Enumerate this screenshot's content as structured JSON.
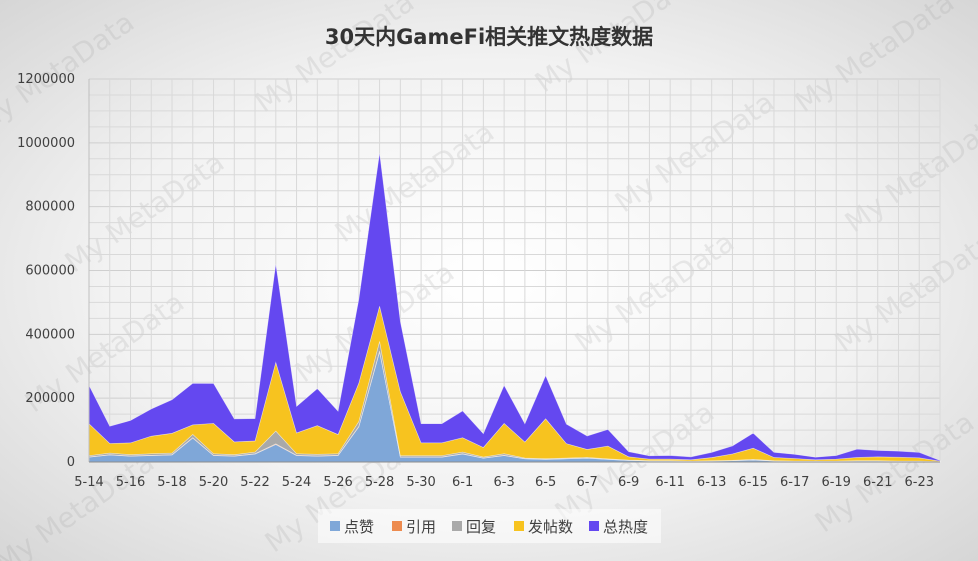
{
  "chart_data": {
    "type": "area",
    "title": "30天内GameFi相关推文热度数据",
    "xlabel": "",
    "ylabel": "",
    "ylim": [
      0,
      1200000
    ],
    "yticks": [
      "0",
      "200000",
      "400000",
      "600000",
      "800000",
      "1000000",
      "1200000"
    ],
    "grid": true,
    "legend_position": "bottom",
    "stacked": true,
    "x": [
      "5-14",
      "5-15",
      "5-16",
      "5-17",
      "5-18",
      "5-19",
      "5-20",
      "5-21",
      "5-22",
      "5-23",
      "5-24",
      "5-25",
      "5-26",
      "5-27",
      "5-28",
      "5-29",
      "5-30",
      "5-31",
      "6-1",
      "6-2",
      "6-3",
      "6-4",
      "6-5",
      "6-6",
      "6-7",
      "6-8",
      "6-9",
      "6-10",
      "6-11",
      "6-12",
      "6-13",
      "6-14",
      "6-15",
      "6-16",
      "6-17",
      "6-18",
      "6-19",
      "6-20",
      "6-21",
      "6-22",
      "6-23",
      "6-24"
    ],
    "x_tick_labels": [
      "5-14",
      "5-16",
      "5-18",
      "5-20",
      "5-22",
      "5-24",
      "5-26",
      "5-28",
      "5-30",
      "6-1",
      "6-3",
      "6-5",
      "6-7",
      "6-9",
      "6-11",
      "6-13",
      "6-15",
      "6-17",
      "6-19",
      "6-21",
      "6-23"
    ],
    "series": [
      {
        "name": "点赞",
        "color": "#7fa7d8",
        "values": [
          15000,
          22000,
          18000,
          20000,
          22000,
          75000,
          20000,
          18000,
          25000,
          55000,
          20000,
          18000,
          20000,
          110000,
          345000,
          15000,
          15000,
          15000,
          25000,
          12000,
          20000,
          10000,
          8000,
          10000,
          12000,
          8000,
          5000,
          3000,
          3000,
          2000,
          3000,
          4000,
          6000,
          3000,
          2000,
          2000,
          2000,
          3000,
          3000,
          2000,
          2000,
          1000
        ]
      },
      {
        "name": "引用",
        "color": "#ed8b4f",
        "values": [
          1000,
          1000,
          1000,
          1000,
          1000,
          1500,
          1000,
          1000,
          1000,
          2000,
          1000,
          1000,
          1000,
          2000,
          3000,
          1000,
          1000,
          1000,
          1000,
          500,
          1000,
          500,
          500,
          500,
          500,
          400,
          300,
          200,
          200,
          200,
          200,
          200,
          300,
          200,
          200,
          200,
          200,
          200,
          200,
          200,
          200,
          100
        ]
      },
      {
        "name": "回复",
        "color": "#a9a9a9",
        "values": [
          4000,
          5000,
          4000,
          5000,
          5000,
          10000,
          5000,
          4000,
          5000,
          40000,
          5000,
          5000,
          5000,
          15000,
          30000,
          4000,
          4000,
          4000,
          5000,
          3000,
          5000,
          2000,
          2000,
          2000,
          2000,
          1500,
          1000,
          1000,
          1000,
          800,
          800,
          1000,
          2000,
          1000,
          800,
          800,
          800,
          1000,
          1000,
          800,
          800,
          500
        ]
      },
      {
        "name": "发帖数",
        "color": "#f7c31f",
        "values": [
          100000,
          30000,
          37000,
          55000,
          62000,
          30000,
          95000,
          40000,
          35000,
          215000,
          65000,
          90000,
          60000,
          120000,
          110000,
          200000,
          40000,
          40000,
          45000,
          30000,
          95000,
          50000,
          125000,
          45000,
          25000,
          40000,
          10000,
          5000,
          5000,
          4000,
          10000,
          20000,
          35000,
          10000,
          8000,
          4000,
          6000,
          10000,
          12000,
          12000,
          10000,
          1000
        ]
      },
      {
        "name": "总热度",
        "color": "#6448f0",
        "values": [
          120000,
          54000,
          70000,
          85000,
          105000,
          130000,
          125000,
          72000,
          70000,
          308000,
          83000,
          116000,
          73000,
          263000,
          480000,
          220000,
          60000,
          60000,
          84000,
          43000,
          119000,
          57000,
          135000,
          61000,
          42000,
          52000,
          16000,
          10000,
          11000,
          9000,
          16000,
          25000,
          47000,
          16000,
          13000,
          8000,
          11000,
          26000,
          20000,
          19000,
          17000,
          2000
        ]
      }
    ]
  },
  "legend": [
    {
      "label": "点赞",
      "color": "#7fa7d8"
    },
    {
      "label": "引用",
      "color": "#ed8b4f"
    },
    {
      "label": "回复",
      "color": "#a9a9a9"
    },
    {
      "label": "发帖数",
      "color": "#f7c31f"
    },
    {
      "label": "总热度",
      "color": "#6448f0"
    }
  ],
  "watermark": "My MetaData"
}
